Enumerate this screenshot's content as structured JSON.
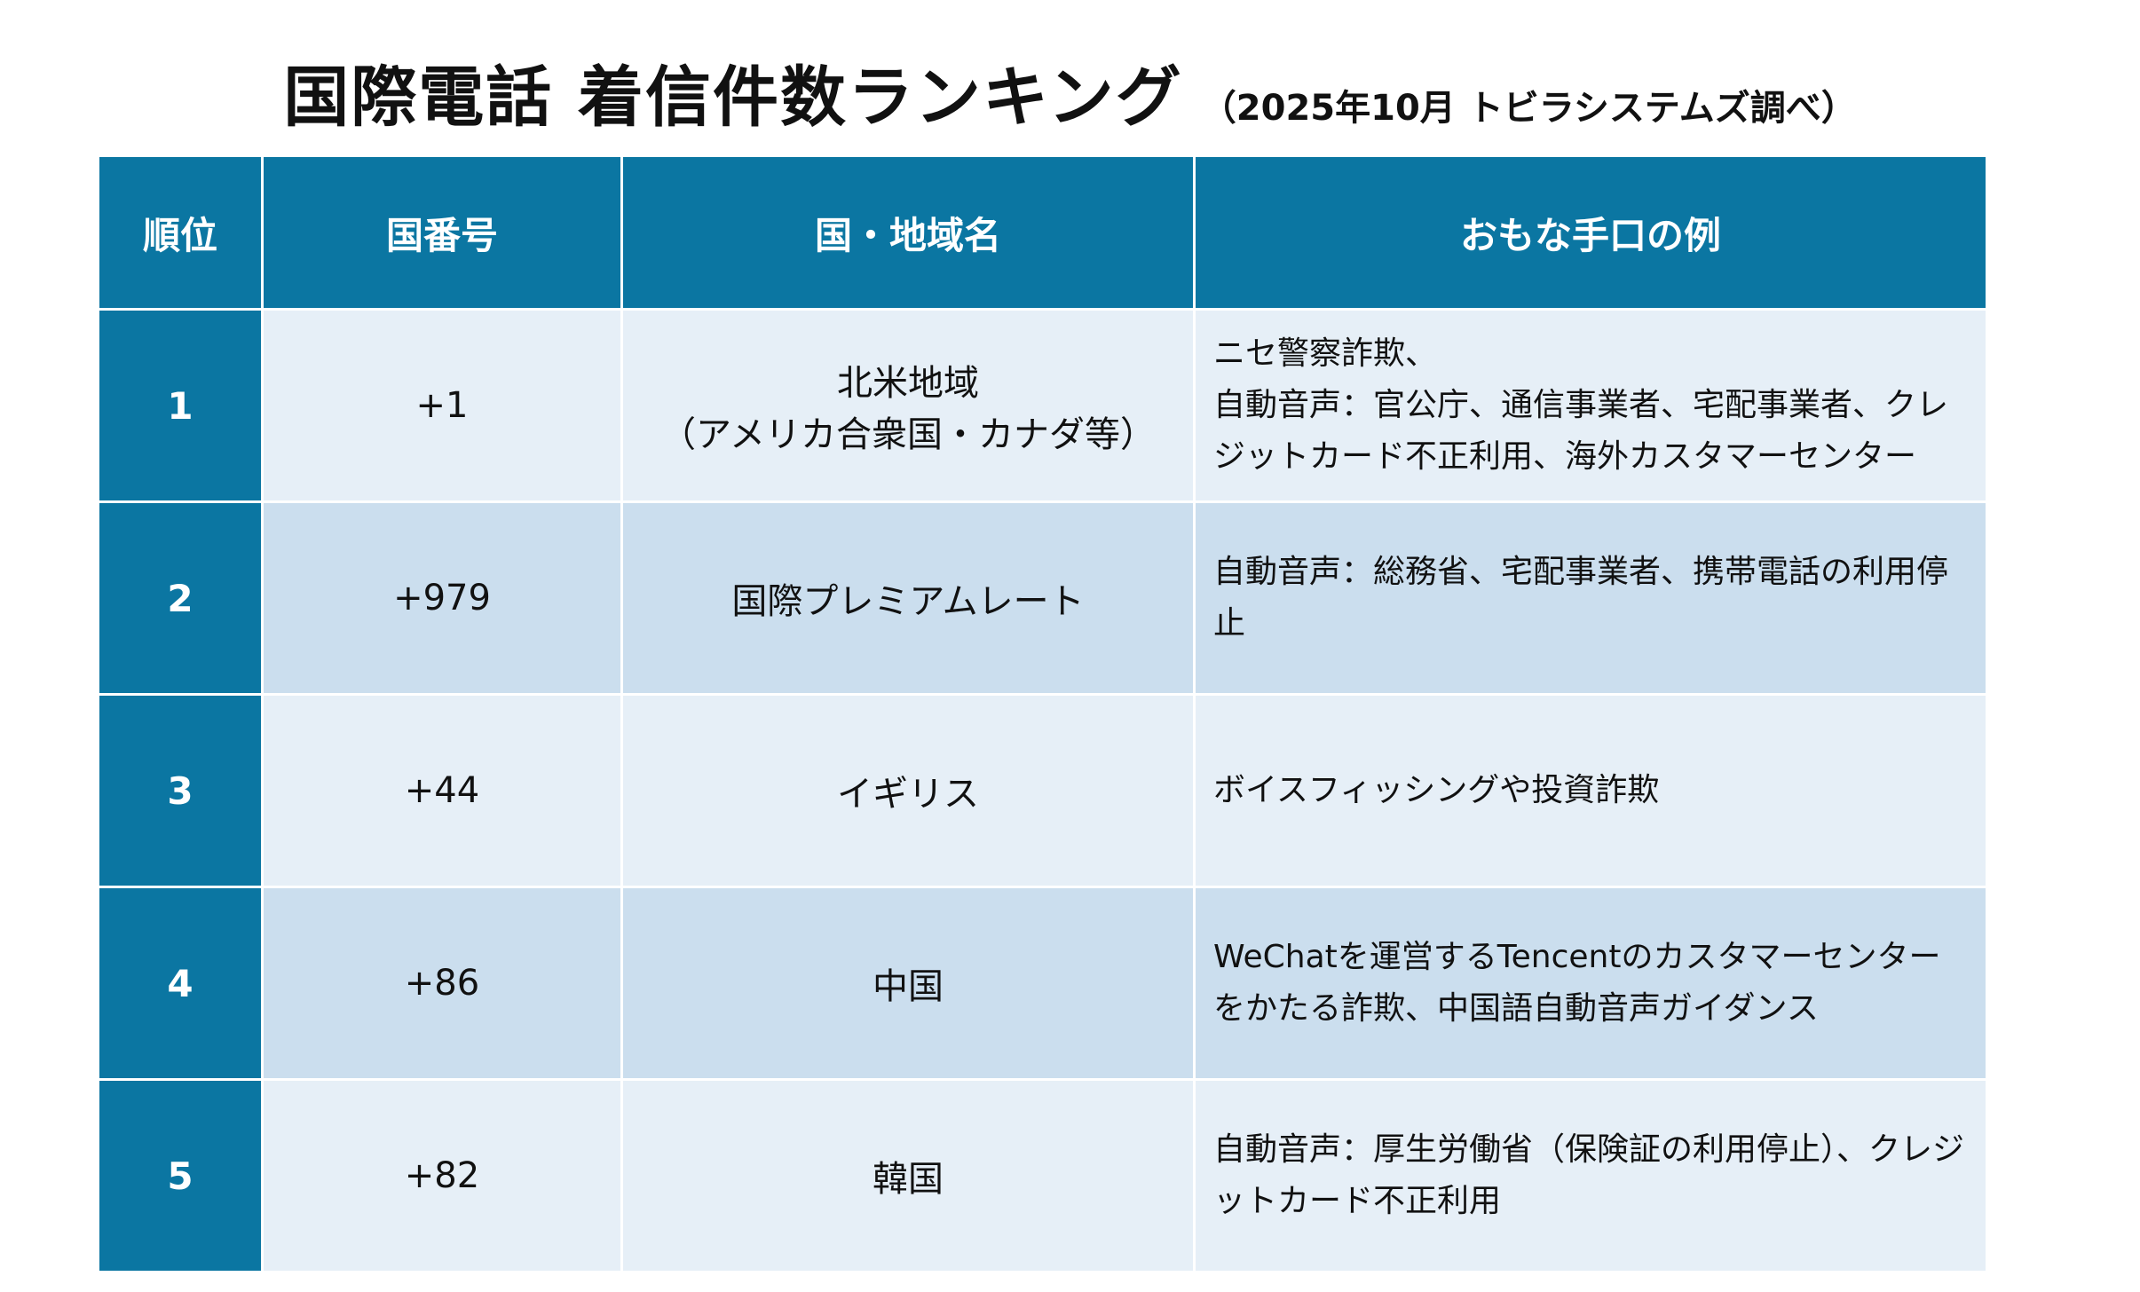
{
  "title": {
    "main": "国際電話 着信件数ランキング",
    "sub": "（2025年10月 トビラシステムズ調べ）"
  },
  "table": {
    "headers": [
      "順位",
      "国番号",
      "国・地域名",
      "おもな手口の例"
    ],
    "rows": [
      {
        "rank": "1",
        "code": "+1",
        "region": "北米地域\n（アメリカ合衆国・カナダ等）",
        "desc": "ニセ警察詐欺、\n自動音声：官公庁、通信事業者、宅配事業者、クレジットカード不正利用、海外カスタマーセンター"
      },
      {
        "rank": "2",
        "code": "+979",
        "region": "国際プレミアムレート",
        "desc": "自動音声：総務省、宅配事業者、携帯電話の利用停止"
      },
      {
        "rank": "3",
        "code": "+44",
        "region": "イギリス",
        "desc": "ボイスフィッシングや投資詐欺"
      },
      {
        "rank": "4",
        "code": "+86",
        "region": "中国",
        "desc": "WeChatを運営するTencentのカスタマーセンターをかたる詐欺、中国語自動音声ガイダンス"
      },
      {
        "rank": "5",
        "code": "+82",
        "region": "韓国",
        "desc": "自動音声：厚生労働省（保険証の利用停止）、クレジットカード不正利用"
      }
    ]
  },
  "colors": {
    "header": "#0b76a2",
    "row_light": "#e6eff7",
    "row_dark": "#cbdeee"
  }
}
